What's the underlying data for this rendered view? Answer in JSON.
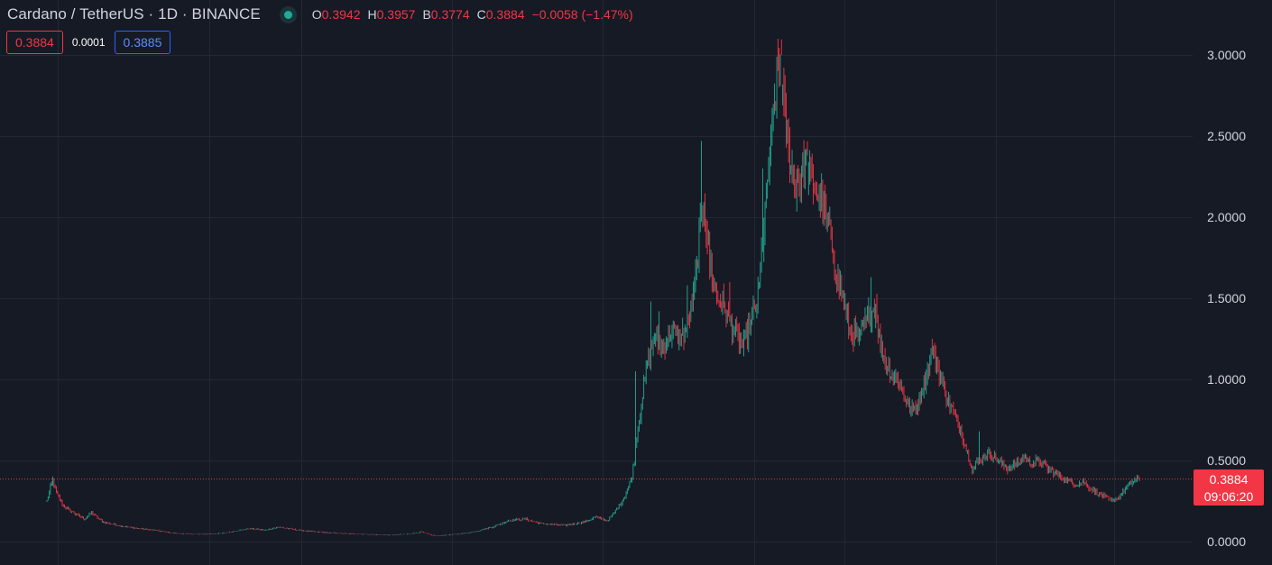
{
  "header": {
    "symbol_title": "Cardano / TetherUS · 1D · BINANCE",
    "ohlc": [
      {
        "label": "O",
        "value": "0.3942"
      },
      {
        "label": "H",
        "value": "0.3957"
      },
      {
        "label": "B",
        "value": "0.3774"
      },
      {
        "label": "C",
        "value": "0.3884"
      }
    ],
    "change": "−0.0058 (−1.47%)"
  },
  "quote": {
    "bid": "0.3884",
    "spread": "0.0001",
    "ask": "0.3885"
  },
  "last_price_tag": {
    "price": "0.3884",
    "countdown": "09:06:20"
  },
  "colors": {
    "background": "#161a25",
    "up": "#22ab94",
    "down": "#f23645",
    "grid": "#232734",
    "ask": "#2962ff"
  },
  "icons": {
    "status": "market-open-dot-icon"
  },
  "chart_data": {
    "type": "candlestick",
    "title": "Cardano / TetherUS · 1D · BINANCE",
    "xlabel": "",
    "ylabel": "",
    "ylim": [
      0,
      3.0
    ],
    "yticks": [
      "3.0000",
      "2.5000",
      "2.0000",
      "1.5000",
      "1.0000",
      "0.5000",
      "0.0000"
    ],
    "grid": true,
    "last_price": 0.3884,
    "series_points": [
      [
        0,
        0.25
      ],
      [
        3,
        0.33
      ],
      [
        5,
        0.38
      ],
      [
        8,
        0.3
      ],
      [
        14,
        0.22
      ],
      [
        22,
        0.18
      ],
      [
        32,
        0.14
      ],
      [
        38,
        0.18
      ],
      [
        48,
        0.12
      ],
      [
        60,
        0.1
      ],
      [
        78,
        0.08
      ],
      [
        92,
        0.07
      ],
      [
        110,
        0.05
      ],
      [
        130,
        0.045
      ],
      [
        148,
        0.05
      ],
      [
        160,
        0.065
      ],
      [
        172,
        0.08
      ],
      [
        186,
        0.07
      ],
      [
        196,
        0.09
      ],
      [
        210,
        0.075
      ],
      [
        228,
        0.06
      ],
      [
        250,
        0.05
      ],
      [
        270,
        0.045
      ],
      [
        290,
        0.04
      ],
      [
        305,
        0.045
      ],
      [
        318,
        0.06
      ],
      [
        330,
        0.035
      ],
      [
        348,
        0.045
      ],
      [
        362,
        0.06
      ],
      [
        378,
        0.09
      ],
      [
        392,
        0.13
      ],
      [
        406,
        0.14
      ],
      [
        420,
        0.11
      ],
      [
        440,
        0.1
      ],
      [
        456,
        0.12
      ],
      [
        466,
        0.15
      ],
      [
        476,
        0.13
      ],
      [
        484,
        0.2
      ],
      [
        492,
        0.3
      ],
      [
        497,
        0.4
      ],
      [
        501,
        0.65
      ],
      [
        506,
        0.9
      ],
      [
        510,
        1.1
      ],
      [
        516,
        1.25
      ],
      [
        523,
        1.2
      ],
      [
        532,
        1.3
      ],
      [
        540,
        1.25
      ],
      [
        546,
        1.4
      ],
      [
        550,
        1.55
      ],
      [
        554,
        1.85
      ],
      [
        558,
        2.15
      ],
      [
        563,
        1.7
      ],
      [
        569,
        1.5
      ],
      [
        575,
        1.45
      ],
      [
        583,
        1.3
      ],
      [
        591,
        1.2
      ],
      [
        598,
        1.35
      ],
      [
        604,
        1.5
      ],
      [
        608,
        1.85
      ],
      [
        612,
        2.2
      ],
      [
        616,
        2.55
      ],
      [
        620,
        2.85
      ],
      [
        623,
        2.95
      ],
      [
        626,
        2.65
      ],
      [
        630,
        2.4
      ],
      [
        636,
        2.2
      ],
      [
        644,
        2.3
      ],
      [
        652,
        2.2
      ],
      [
        658,
        2.1
      ],
      [
        664,
        1.95
      ],
      [
        670,
        1.7
      ],
      [
        676,
        1.5
      ],
      [
        682,
        1.3
      ],
      [
        690,
        1.25
      ],
      [
        698,
        1.4
      ],
      [
        704,
        1.45
      ],
      [
        708,
        1.2
      ],
      [
        716,
        1.05
      ],
      [
        722,
        1.0
      ],
      [
        728,
        0.9
      ],
      [
        734,
        0.8
      ],
      [
        740,
        0.85
      ],
      [
        746,
        1.0
      ],
      [
        752,
        1.2
      ],
      [
        758,
        1.05
      ],
      [
        764,
        0.9
      ],
      [
        770,
        0.8
      ],
      [
        776,
        0.7
      ],
      [
        782,
        0.55
      ],
      [
        786,
        0.45
      ],
      [
        792,
        0.5
      ],
      [
        800,
        0.55
      ],
      [
        808,
        0.5
      ],
      [
        816,
        0.45
      ],
      [
        824,
        0.48
      ],
      [
        830,
        0.52
      ],
      [
        836,
        0.48
      ],
      [
        842,
        0.5
      ],
      [
        850,
        0.45
      ],
      [
        858,
        0.42
      ],
      [
        866,
        0.38
      ],
      [
        874,
        0.35
      ],
      [
        880,
        0.37
      ],
      [
        886,
        0.33
      ],
      [
        892,
        0.3
      ],
      [
        898,
        0.28
      ],
      [
        904,
        0.25
      ],
      [
        910,
        0.27
      ],
      [
        916,
        0.32
      ],
      [
        922,
        0.37
      ],
      [
        928,
        0.39
      ]
    ],
    "spikes": [
      {
        "x": 500,
        "v": 1.05
      },
      {
        "x": 513,
        "v": 1.48
      },
      {
        "x": 520,
        "v": 1.42
      },
      {
        "x": 540,
        "v": 1.38
      },
      {
        "x": 544,
        "v": 1.58
      },
      {
        "x": 556,
        "v": 2.47
      },
      {
        "x": 564,
        "v": 1.8
      },
      {
        "x": 580,
        "v": 1.6
      },
      {
        "x": 608,
        "v": 2.3
      },
      {
        "x": 621,
        "v": 3.1
      },
      {
        "x": 624,
        "v": 3.0
      },
      {
        "x": 646,
        "v": 2.38
      },
      {
        "x": 700,
        "v": 1.63
      },
      {
        "x": 752,
        "v": 1.25
      },
      {
        "x": 792,
        "v": 0.68
      }
    ]
  }
}
